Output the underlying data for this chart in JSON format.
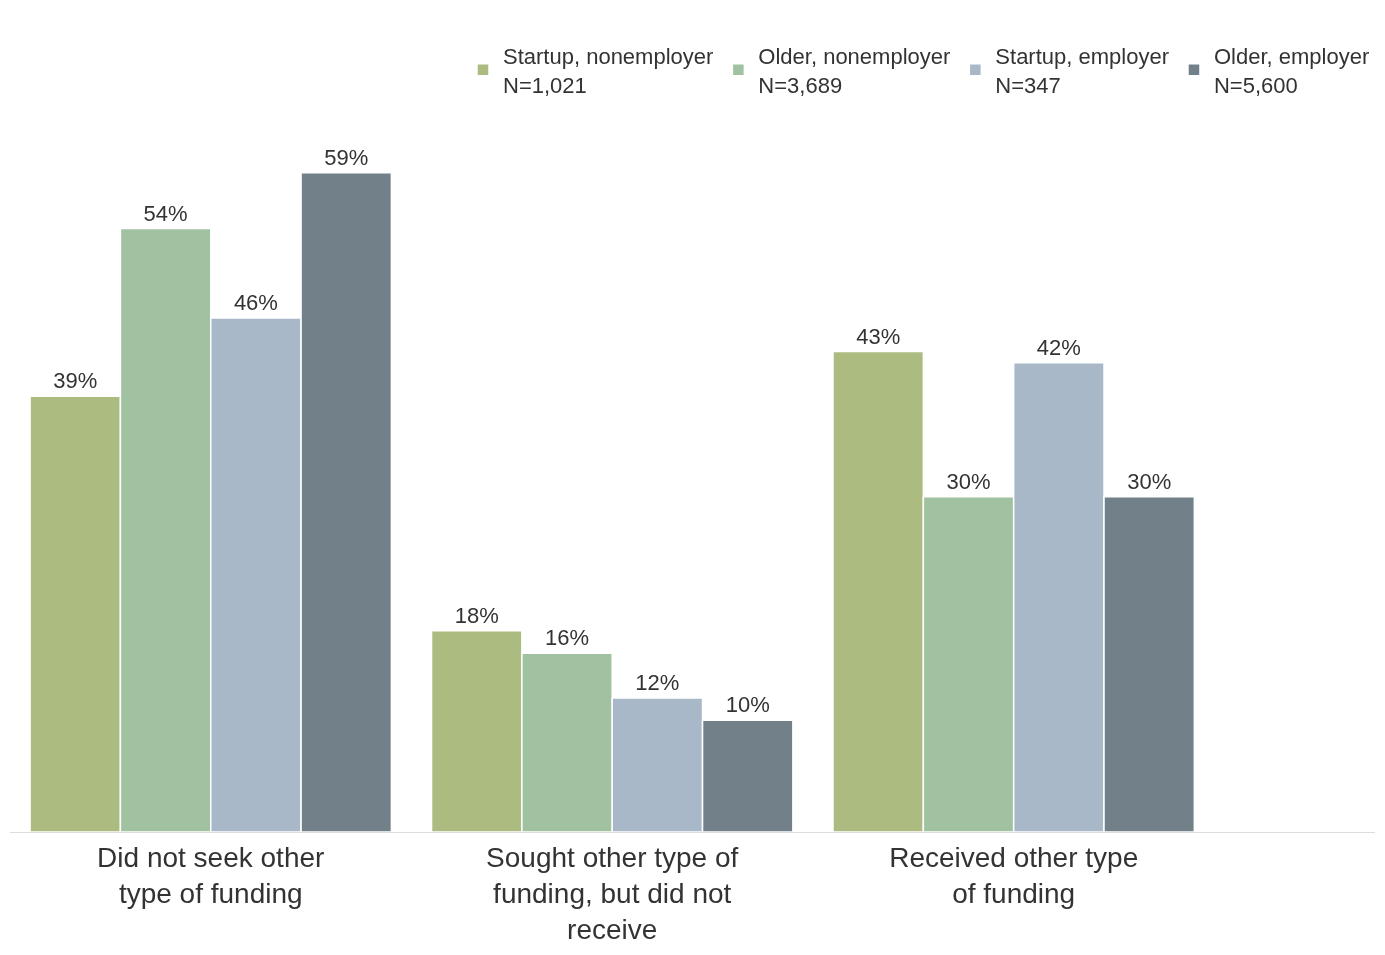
{
  "chart_data": {
    "type": "bar",
    "categories": [
      "Did not seek other type of funding",
      "Sought other type of funding, but did not receive",
      "Received other type of funding"
    ],
    "series": [
      {
        "name": "Startup, nonemployer\nN=1,021",
        "color": "#acbb7f",
        "values": [
          39,
          18,
          43
        ],
        "value_labels": [
          "39%",
          "18%",
          "43%"
        ]
      },
      {
        "name": "Older, nonemployer\nN=3,689",
        "color": "#a0c2a0",
        "values": [
          54,
          16,
          30
        ],
        "value_labels": [
          "54%",
          "16%",
          "30%"
        ]
      },
      {
        "name": "Startup, employer\nN=347",
        "color": "#a8b8c8",
        "values": [
          46,
          12,
          42
        ],
        "value_labels": [
          "46%",
          "12%",
          "42%"
        ]
      },
      {
        "name": "Older, employer\nN=5,600",
        "color": "#718089",
        "values": [
          59,
          10,
          30
        ],
        "value_labels": [
          "59%",
          "10%",
          "30%"
        ]
      }
    ],
    "legend": "top"
  }
}
